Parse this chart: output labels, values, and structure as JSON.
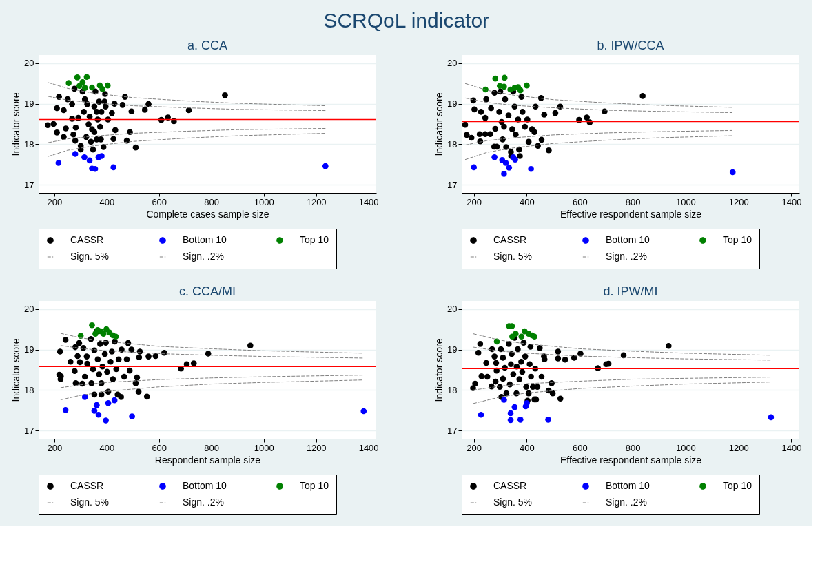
{
  "chart_data": [
    {
      "type": "scatter",
      "title": "SCRQoL indicator",
      "subtitle": "a. CCA",
      "xlabel": "Complete cases sample size",
      "ylabel": "Indicator score",
      "xlim": [
        140,
        1430
      ],
      "ylim": [
        16.8,
        20.2
      ],
      "xticks": [
        200,
        400,
        600,
        800,
        1000,
        1200,
        1400
      ],
      "yticks": [
        17,
        18,
        19,
        20
      ],
      "grid": "y",
      "legend": "bottom",
      "ref_lines": [
        {
          "axis": "y",
          "value": 18.61,
          "color": "#ff0000"
        }
      ],
      "series": [
        {
          "name": "CASSR",
          "color": "#000000",
          "marker": "circle",
          "x": [
            175,
            197,
            210,
            218,
            210,
            236,
            244,
            236,
            251,
            268,
            280,
            277,
            282,
            301,
            301,
            292,
            308,
            313,
            322,
            326,
            331,
            340,
            348,
            353,
            357,
            362,
            366,
            371,
            375,
            378,
            388,
            394,
            396,
            405,
            420,
            426,
            430,
            433,
            461,
            470,
            477,
            489,
            495,
            511,
            546,
            560,
            609,
            634,
            657,
            714,
            852,
            317,
            353,
            380,
            344,
            335,
            362,
            392,
            273,
            268
          ],
          "values": [
            18.47,
            18.5,
            18.89,
            19.17,
            18.29,
            18.18,
            18.39,
            18.84,
            19.11,
            18.63,
            18.09,
            19.37,
            18.41,
            17.96,
            17.87,
            18.65,
            19.3,
            18.8,
            18.18,
            18.99,
            18.49,
            18.06,
            17.87,
            18.3,
            19.3,
            18.8,
            18.61,
            19.05,
            18.43,
            18.12,
            17.93,
            19.24,
            18.93,
            18.61,
            18.77,
            18.13,
            19.0,
            18.35,
            18.97,
            19.17,
            18.09,
            18.3,
            18.81,
            17.92,
            18.85,
            18.99,
            18.6,
            18.66,
            18.57,
            18.84,
            19.21,
            19.11,
            18.93,
            18.8,
            18.37,
            18.68,
            18.12,
            19.05,
            18.24,
            18.99
          ]
        },
        {
          "name": "Bottom 10",
          "color": "#0000ff",
          "marker": "circle",
          "x": [
            216,
            280,
            315,
            335,
            344,
            356,
            369,
            381,
            426,
            1236
          ],
          "values": [
            17.54,
            17.76,
            17.68,
            17.6,
            17.4,
            17.39,
            17.68,
            17.71,
            17.43,
            17.46
          ]
        },
        {
          "name": "Top 10",
          "color": "#008000",
          "marker": "circle",
          "x": [
            255,
            288,
            324,
            308,
            317,
            344,
            374,
            384,
            404,
            296
          ],
          "values": [
            19.51,
            19.65,
            19.66,
            19.53,
            19.39,
            19.4,
            19.45,
            19.36,
            19.45,
            19.44
          ]
        },
        {
          "name": "Sign. 5%",
          "type": "line",
          "line_style": "dashed",
          "color": "#808080",
          "x": [
            177,
            250,
            350,
            500,
            700,
            900,
            1236
          ],
          "values": [
            19.18,
            19.09,
            19.02,
            18.95,
            18.9,
            18.86,
            18.83
          ]
        },
        {
          "type": "line",
          "line_style": "dashed",
          "color": "#808080",
          "x": [
            177,
            250,
            350,
            500,
            700,
            900,
            1236
          ],
          "values": [
            18.04,
            18.13,
            18.2,
            18.27,
            18.32,
            18.36,
            18.39
          ]
        },
        {
          "name": "Sign. .2%",
          "type": "line",
          "line_style": "dashed",
          "color": "#808080",
          "x": [
            177,
            250,
            350,
            500,
            700,
            900,
            1236
          ],
          "values": [
            19.52,
            19.38,
            19.26,
            19.15,
            19.07,
            19.01,
            18.95
          ]
        },
        {
          "type": "line",
          "line_style": "dashed",
          "color": "#808080",
          "x": [
            177,
            250,
            350,
            500,
            700,
            900,
            1236
          ],
          "values": [
            17.7,
            17.85,
            17.96,
            18.07,
            18.15,
            18.21,
            18.27
          ]
        }
      ]
    },
    {
      "type": "scatter",
      "subtitle": "b. IPW/CCA",
      "xlabel": "Effective respondent sample size",
      "ylabel": "Indicator score",
      "xlim": [
        154,
        1430
      ],
      "ylim": [
        16.8,
        20.2
      ],
      "xticks": [
        200,
        400,
        600,
        800,
        1000,
        1200,
        1400
      ],
      "yticks": [
        17,
        18,
        19,
        20
      ],
      "grid": "y",
      "legend": "bottom",
      "ref_lines": [
        {
          "axis": "y",
          "value": 18.56,
          "color": "#ff0000"
        }
      ],
      "series": [
        {
          "name": "CASSR",
          "color": "#000000",
          "marker": "circle",
          "x": [
            167,
            173,
            191,
            198,
            202,
            222,
            224,
            227,
            243,
            243,
            247,
            262,
            265,
            277,
            281,
            287,
            278,
            296,
            300,
            305,
            309,
            314,
            318,
            322,
            331,
            340,
            341,
            345,
            349,
            354,
            358,
            367,
            371,
            374,
            380,
            384,
            393,
            402,
            407,
            420,
            429,
            433,
            442,
            454,
            456,
            466,
            483,
            508,
            526,
            598,
            627,
            638,
            694,
            838
          ],
          "values": [
            18.48,
            18.23,
            18.16,
            19.08,
            18.86,
            18.25,
            18.07,
            18.8,
            18.65,
            18.25,
            19.11,
            18.25,
            18.89,
            17.94,
            18.38,
            17.94,
            19.27,
            18.8,
            19.3,
            18.55,
            18.12,
            18.43,
            19.11,
            17.93,
            18.71,
            17.81,
            17.71,
            18.37,
            19.3,
            18.93,
            18.24,
            18.61,
            17.87,
            17.71,
            19.17,
            18.8,
            18.43,
            18.61,
            18.06,
            18.37,
            18.3,
            18.93,
            17.96,
            19.14,
            18.11,
            18.73,
            17.85,
            18.77,
            18.93,
            18.6,
            18.66,
            18.54,
            18.81,
            19.19
          ]
        },
        {
          "name": "Bottom 10",
          "color": "#0000ff",
          "marker": "circle",
          "x": [
            200,
            278,
            307,
            321,
            333,
            314,
            356,
            416,
            1178,
            349
          ],
          "values": [
            17.43,
            17.68,
            17.61,
            17.54,
            17.42,
            17.27,
            17.62,
            17.39,
            17.31,
            17.68
          ]
        },
        {
          "name": "Top 10",
          "color": "#008000",
          "marker": "circle",
          "x": [
            244,
            281,
            316,
            298,
            314,
            338,
            367,
            376,
            400,
            354
          ],
          "values": [
            19.35,
            19.62,
            19.64,
            19.44,
            19.42,
            19.35,
            19.41,
            19.33,
            19.45,
            19.39
          ]
        },
        {
          "name": "Sign. 5%",
          "type": "line",
          "line_style": "dashed",
          "color": "#808080",
          "x": [
            167,
            250,
            350,
            500,
            700,
            900,
            1176
          ],
          "values": [
            19.14,
            19.03,
            18.96,
            18.9,
            18.84,
            18.81,
            18.78
          ]
        },
        {
          "type": "line",
          "line_style": "dashed",
          "color": "#808080",
          "x": [
            167,
            250,
            350,
            500,
            700,
            900,
            1176
          ],
          "values": [
            17.98,
            18.09,
            18.16,
            18.23,
            18.28,
            18.31,
            18.34
          ]
        },
        {
          "name": "Sign. .2%",
          "type": "line",
          "line_style": "dashed",
          "color": "#808080",
          "x": [
            167,
            250,
            350,
            500,
            700,
            900,
            1176
          ],
          "values": [
            19.5,
            19.33,
            19.21,
            19.1,
            19.02,
            18.96,
            18.91
          ]
        },
        {
          "type": "line",
          "line_style": "dashed",
          "color": "#808080",
          "x": [
            167,
            250,
            350,
            500,
            700,
            900,
            1176
          ],
          "values": [
            17.62,
            17.8,
            17.91,
            18.02,
            18.1,
            18.16,
            18.21
          ]
        }
      ]
    },
    {
      "type": "scatter",
      "subtitle": "c. CCA/MI",
      "xlabel": "Respondent sample size",
      "ylabel": "Indicator score",
      "xlim": [
        140,
        1430
      ],
      "ylim": [
        16.8,
        20.2
      ],
      "xticks": [
        200,
        400,
        600,
        800,
        1000,
        1200,
        1400
      ],
      "yticks": [
        17,
        18,
        19,
        20
      ],
      "grid": "y",
      "legend": "bottom",
      "ref_lines": [
        {
          "axis": "y",
          "value": 18.58,
          "color": "#ff0000"
        }
      ],
      "series": [
        {
          "name": "CASSR",
          "color": "#000000",
          "marker": "circle",
          "x": [
            222,
            219,
            225,
            224,
            243,
            262,
            278,
            280,
            282,
            289,
            295,
            298,
            307,
            311,
            317,
            324,
            326,
            342,
            340,
            348,
            353,
            353,
            362,
            366,
            371,
            375,
            380,
            380,
            384,
            393,
            397,
            402,
            406,
            415,
            420,
            424,
            431,
            437,
            442,
            446,
            455,
            457,
            467,
            477,
            482,
            488,
            495,
            511,
            516,
            522,
            527,
            524,
            554,
            560,
            587,
            620,
            684,
            706,
            733,
            788,
            949
          ],
          "values": [
            18.95,
            18.38,
            18.34,
            18.27,
            19.24,
            18.7,
            18.47,
            19.06,
            18.17,
            18.84,
            19.16,
            18.69,
            18.16,
            19.04,
            18.33,
            18.83,
            18.65,
            18.17,
            19.26,
            18.52,
            17.89,
            18.98,
            19.45,
            18.76,
            18.39,
            19.14,
            17.89,
            18.17,
            18.58,
            18.89,
            19.17,
            18.45,
            17.96,
            18.7,
            18.95,
            18.27,
            19.2,
            18.52,
            17.89,
            18.76,
            17.83,
            19.0,
            18.33,
            18.76,
            19.16,
            18.48,
            19.0,
            18.17,
            18.31,
            17.96,
            18.95,
            18.81,
            17.84,
            18.83,
            18.84,
            18.92,
            18.53,
            18.64,
            18.66,
            18.9,
            19.1
          ]
        },
        {
          "name": "Bottom 10",
          "color": "#0000ff",
          "marker": "circle",
          "x": [
            243,
            317,
            362,
            353,
            369,
            397,
            406,
            430,
            497,
            1382
          ],
          "values": [
            17.51,
            17.83,
            17.63,
            17.49,
            17.39,
            17.25,
            17.68,
            17.75,
            17.35,
            17.48
          ]
        },
        {
          "name": "Top 10",
          "color": "#008000",
          "marker": "circle",
          "x": [
            301,
            344,
            357,
            388,
            399,
            411,
            424,
            435,
            378,
            366
          ],
          "values": [
            19.34,
            19.6,
            19.39,
            19.39,
            19.5,
            19.42,
            19.35,
            19.32,
            19.45,
            19.48
          ]
        },
        {
          "name": "Sign. 5%",
          "type": "line",
          "line_style": "dashed",
          "color": "#808080",
          "x": [
            224,
            300,
            400,
            600,
            800,
            1000,
            1380
          ],
          "values": [
            19.1,
            19.03,
            18.97,
            18.9,
            18.86,
            18.83,
            18.79
          ]
        },
        {
          "type": "line",
          "line_style": "dashed",
          "color": "#808080",
          "x": [
            224,
            300,
            400,
            600,
            800,
            1000,
            1380
          ],
          "values": [
            18.06,
            18.13,
            18.19,
            18.26,
            18.3,
            18.33,
            18.37
          ]
        },
        {
          "name": "Sign. .2%",
          "type": "line",
          "line_style": "dashed",
          "color": "#808080",
          "x": [
            224,
            300,
            400,
            600,
            800,
            1000,
            1380
          ],
          "values": [
            19.4,
            19.29,
            19.2,
            19.08,
            19.02,
            18.97,
            18.91
          ]
        },
        {
          "type": "line",
          "line_style": "dashed",
          "color": "#808080",
          "x": [
            224,
            300,
            400,
            600,
            800,
            1000,
            1380
          ],
          "values": [
            17.76,
            17.87,
            17.97,
            18.08,
            18.15,
            18.19,
            18.25
          ]
        }
      ]
    },
    {
      "type": "scatter",
      "subtitle": "d. IPW/MI",
      "xlabel": "Effective respondent sample size",
      "ylabel": "Indicator score",
      "xlim": [
        154,
        1430
      ],
      "ylim": [
        16.8,
        20.2
      ],
      "xticks": [
        200,
        400,
        600,
        800,
        1000,
        1200,
        1400
      ],
      "yticks": [
        17,
        18,
        19,
        20
      ],
      "grid": "y",
      "legend": "bottom",
      "ref_lines": [
        {
          "axis": "y",
          "value": 18.53,
          "color": "#ff0000"
        }
      ],
      "series": [
        {
          "name": "CASSR",
          "color": "#000000",
          "marker": "circle",
          "x": [
            197,
            205,
            217,
            224,
            229,
            247,
            251,
            267,
            269,
            278,
            282,
            284,
            286,
            298,
            302,
            304,
            310,
            310,
            317,
            323,
            332,
            336,
            340,
            343,
            349,
            354,
            361,
            362,
            366,
            372,
            379,
            383,
            388,
            394,
            398,
            403,
            407,
            411,
            414,
            416,
            423,
            429,
            432,
            435,
            440,
            449,
            456,
            465,
            467,
            483,
            494,
            498,
            518,
            518,
            527,
            545,
            579,
            603,
            669,
            700,
            709,
            766,
            936
          ],
          "values": [
            18.05,
            18.16,
            18.92,
            19.14,
            18.34,
            18.67,
            18.33,
            18.09,
            19.01,
            18.83,
            18.21,
            18.67,
            18.48,
            18.08,
            19.01,
            17.83,
            18.8,
            18.28,
            18.55,
            17.92,
            19.14,
            18.14,
            18.64,
            18.89,
            18.39,
            19.29,
            17.92,
            18.58,
            19.01,
            18.27,
            18.7,
            18.45,
            19.17,
            18.83,
            18.08,
            17.74,
            17.92,
            18.64,
            19.07,
            18.33,
            18.08,
            17.77,
            18.53,
            17.77,
            18.08,
            19.04,
            18.33,
            18.83,
            18.76,
            17.99,
            18.17,
            17.92,
            18.95,
            18.78,
            17.79,
            18.75,
            18.8,
            18.9,
            18.54,
            18.64,
            18.65,
            18.86,
            19.09
          ]
        },
        {
          "name": "Bottom 10",
          "color": "#0000ff",
          "marker": "circle",
          "x": [
            227,
            314,
            354,
            339,
            339,
            376,
            396,
            400,
            481,
            1323
          ],
          "values": [
            17.39,
            17.76,
            17.58,
            17.43,
            17.26,
            17.27,
            17.6,
            17.68,
            17.27,
            17.33
          ]
        },
        {
          "name": "Top 10",
          "color": "#008000",
          "marker": "circle",
          "x": [
            287,
            333,
            345,
            358,
            380,
            392,
            407,
            420,
            429,
            344
          ],
          "values": [
            19.2,
            19.58,
            19.32,
            19.39,
            19.32,
            19.45,
            19.39,
            19.35,
            19.32,
            19.58
          ]
        },
        {
          "name": "Sign. 5%",
          "type": "line",
          "line_style": "dashed",
          "color": "#808080",
          "x": [
            198,
            300,
            400,
            600,
            800,
            1000,
            1323
          ],
          "values": [
            19.06,
            18.96,
            18.91,
            18.84,
            18.8,
            18.77,
            18.74
          ]
        },
        {
          "type": "line",
          "line_style": "dashed",
          "color": "#808080",
          "x": [
            198,
            300,
            400,
            600,
            800,
            1000,
            1323
          ],
          "values": [
            18.0,
            18.1,
            18.16,
            18.22,
            18.27,
            18.29,
            18.32
          ]
        },
        {
          "name": "Sign. .2%",
          "type": "line",
          "line_style": "dashed",
          "color": "#808080",
          "x": [
            198,
            300,
            400,
            600,
            800,
            1000,
            1323
          ],
          "values": [
            19.39,
            19.23,
            19.14,
            19.02,
            18.96,
            18.91,
            18.86
          ]
        },
        {
          "type": "line",
          "line_style": "dashed",
          "color": "#808080",
          "x": [
            198,
            300,
            400,
            600,
            800,
            1000,
            1323
          ],
          "values": [
            17.67,
            17.83,
            17.93,
            18.04,
            18.1,
            18.15,
            18.2
          ]
        }
      ]
    }
  ]
}
